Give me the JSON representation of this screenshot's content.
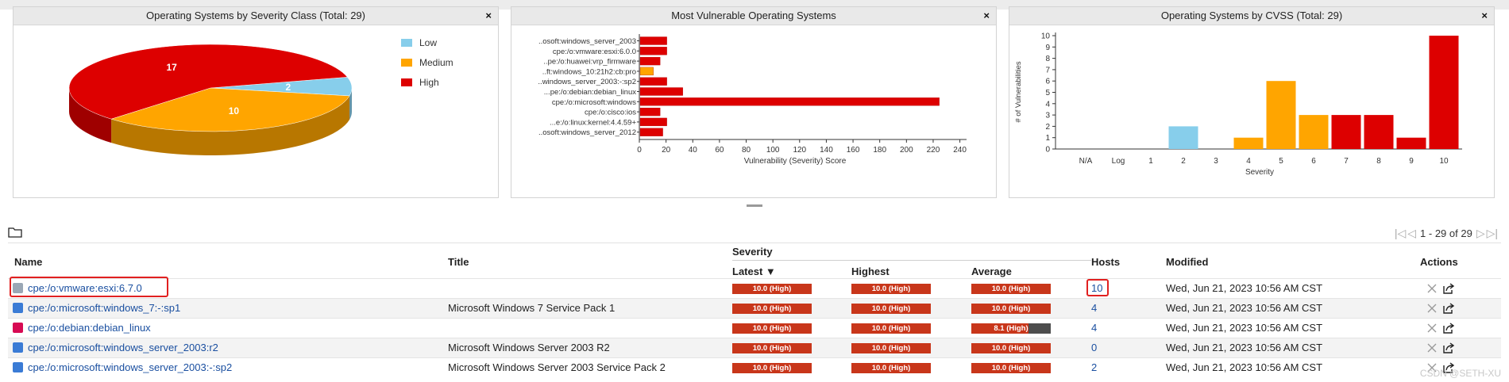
{
  "panels": {
    "severity_class": {
      "title": "Operating Systems by Severity Class (Total: 29)",
      "close": "×"
    },
    "most_vulnerable": {
      "title": "Most Vulnerable Operating Systems",
      "close": "×"
    },
    "cvss": {
      "title": "Operating Systems by CVSS (Total: 29)",
      "close": "×"
    }
  },
  "chart_data": [
    {
      "type": "pie",
      "title": "Operating Systems by Severity Class (Total: 29)",
      "slices": [
        {
          "name": "Low",
          "value": 2,
          "color": "#87ceeb"
        },
        {
          "name": "Medium",
          "value": 10,
          "color": "#ffa500"
        },
        {
          "name": "High",
          "value": 17,
          "color": "#dd0000"
        }
      ],
      "legend": "right"
    },
    {
      "type": "bar",
      "orientation": "horizontal",
      "title": "Most Vulnerable Operating Systems",
      "categories": [
        "..osoft:windows_server_2003",
        "cpe:/o:vmware:esxi:6.0.0",
        "..pe:/o:huawei:vrp_firmware",
        "..ft:windows_10:21h2:cb:pro",
        "..windows_server_2003:-:sp2",
        "...pe:/o:debian:debian_linux",
        "cpe:/o:microsoft:windows",
        "cpe:/o:cisco:ios",
        "...e:/o:linux:kernel:4.4.59+",
        "..osoft:windows_server_2012"
      ],
      "values": [
        20,
        20,
        15,
        10,
        20,
        32,
        224,
        15,
        20,
        17
      ],
      "colors": [
        "#dd0000",
        "#dd0000",
        "#dd0000",
        "#ffa500",
        "#dd0000",
        "#dd0000",
        "#dd0000",
        "#dd0000",
        "#dd0000",
        "#dd0000"
      ],
      "xlabel": "Vulnerability (Severity) Score",
      "ticks": [
        0,
        20,
        40,
        60,
        80,
        100,
        120,
        140,
        160,
        180,
        200,
        220,
        240
      ],
      "xlim": [
        0,
        245
      ]
    },
    {
      "type": "bar",
      "title": "Operating Systems by CVSS (Total: 29)",
      "categories": [
        "N/A",
        "Log",
        "1",
        "2",
        "3",
        "4",
        "5",
        "6",
        "7",
        "8",
        "9",
        "10"
      ],
      "values": [
        0,
        0,
        0,
        2,
        0,
        1,
        6,
        3,
        3,
        3,
        1,
        10
      ],
      "colors": [
        "#87ceeb",
        "#87ceeb",
        "#87ceeb",
        "#87ceeb",
        "#ffa500",
        "#ffa500",
        "#ffa500",
        "#ffa500",
        "#dd0000",
        "#dd0000",
        "#dd0000",
        "#dd0000"
      ],
      "xlabel": "Severity",
      "ylabel": "# of Vulnerabilities",
      "yticks": [
        0,
        1,
        2,
        3,
        4,
        5,
        6,
        7,
        8,
        9,
        10
      ],
      "ylim": [
        0,
        10
      ]
    }
  ],
  "pager": {
    "first": "|◁",
    "prev": "◁",
    "range": "1 - 29 of 29",
    "next": "▷",
    "last": "▷|"
  },
  "table": {
    "headers": {
      "name": "Name",
      "title": "Title",
      "severity": "Severity",
      "latest": "Latest ▼",
      "highest": "Highest",
      "average": "Average",
      "hosts": "Hosts",
      "modified": "Modified",
      "actions": "Actions"
    },
    "rows": [
      {
        "name": "cpe:/o:vmware:esxi:6.7.0",
        "title": "",
        "latest": "10.0 (High)",
        "highest": "10.0 (High)",
        "average": "10.0 (High)",
        "avg_level": "high",
        "hosts": "10",
        "modified": "Wed, Jun 21, 2023 10:56 AM CST",
        "icon": "vmware-icon",
        "icon_color": "#9aa7b5"
      },
      {
        "name": "cpe:/o:microsoft:windows_7:-:sp1",
        "title": "Microsoft Windows 7 Service Pack 1",
        "latest": "10.0 (High)",
        "highest": "10.0 (High)",
        "average": "10.0 (High)",
        "avg_level": "high",
        "hosts": "4",
        "modified": "Wed, Jun 21, 2023 10:56 AM CST",
        "icon": "windows-icon",
        "icon_color": "#3a7bd5"
      },
      {
        "name": "cpe:/o:debian:debian_linux",
        "title": "",
        "latest": "10.0 (High)",
        "highest": "10.0 (High)",
        "average": "8.1 (High)",
        "avg_level": "partial",
        "avg_fill": 0.72,
        "hosts": "4",
        "modified": "Wed, Jun 21, 2023 10:56 AM CST",
        "icon": "debian-icon",
        "icon_color": "#d70a53"
      },
      {
        "name": "cpe:/o:microsoft:windows_server_2003:r2",
        "title": "Microsoft Windows Server 2003 R2",
        "latest": "10.0 (High)",
        "highest": "10.0 (High)",
        "average": "10.0 (High)",
        "avg_level": "high",
        "hosts": "0",
        "modified": "Wed, Jun 21, 2023 10:56 AM CST",
        "icon": "windows-icon",
        "icon_color": "#3a7bd5"
      },
      {
        "name": "cpe:/o:microsoft:windows_server_2003:-:sp2",
        "title": "Microsoft Windows Server 2003 Service Pack 2",
        "latest": "10.0 (High)",
        "highest": "10.0 (High)",
        "average": "10.0 (High)",
        "avg_level": "high",
        "hosts": "2",
        "modified": "Wed, Jun 21, 2023 10:56 AM CST",
        "icon": "windows-icon",
        "icon_color": "#3a7bd5"
      }
    ]
  },
  "watermark": "CSDN @SETH-XU"
}
